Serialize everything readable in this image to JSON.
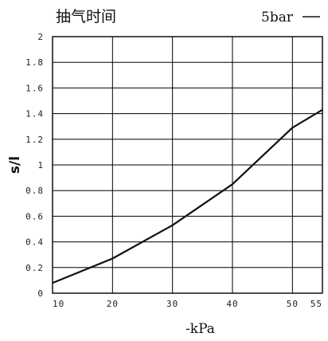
{
  "chart_data": {
    "type": "line",
    "title": "抽气时间",
    "xlabel": "-kPa",
    "ylabel": "s/l",
    "x_ticks": [
      "10",
      "20",
      "30",
      "40",
      "50",
      "55"
    ],
    "y_ticks": [
      "0",
      "0.2",
      "0.4",
      "0.6",
      "0.8",
      "1",
      "1.2",
      "1.4",
      "1.6",
      "1.8",
      "2"
    ],
    "xlim": [
      10,
      55
    ],
    "ylim": [
      0,
      2
    ],
    "grid": true,
    "legend_position": "top-right",
    "series": [
      {
        "name": "5bar",
        "color": "#111111",
        "x": [
          10,
          20,
          30,
          40,
          50,
          55
        ],
        "y": [
          0.08,
          0.27,
          0.53,
          0.85,
          1.29,
          1.43
        ]
      }
    ]
  }
}
